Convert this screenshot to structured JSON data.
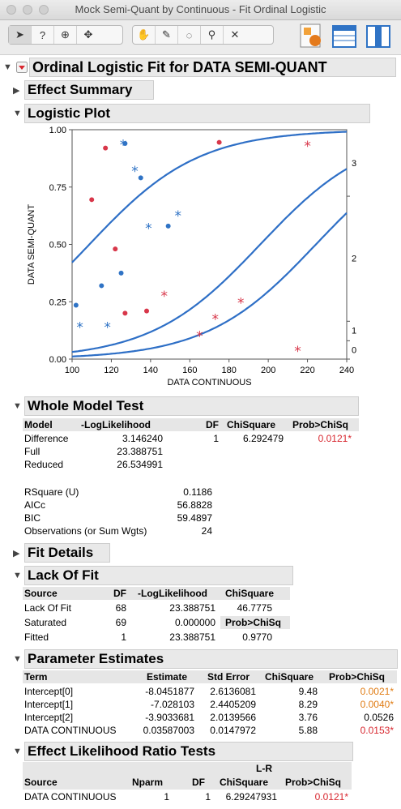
{
  "window": {
    "title": "Mock Semi-Quant by Continuous - Fit Ordinal Logistic"
  },
  "toolbar": {
    "icons": [
      "arrow-tool",
      "help-tool",
      "crosshair-tool",
      "move-tool",
      "grabber-tool",
      "brush-tool",
      "lasso-tool",
      "magnifier-tool",
      "annotate-tool",
      "jmp-home",
      "data-table",
      "report-window"
    ]
  },
  "report": {
    "title": "Ordinal Logistic Fit for DATA SEMI-QUANT",
    "effect_summary": "Effect Summary",
    "logistic_plot": "Logistic Plot",
    "whole_model": {
      "title": "Whole Model Test",
      "headers": [
        "Model",
        "-LogLikelihood",
        "DF",
        "ChiSquare",
        "Prob>ChiSq"
      ],
      "difference": {
        "label": "Difference",
        "loglik": "3.146240",
        "df": "1",
        "chisq": "6.292479",
        "p": "0.0121*"
      },
      "full": {
        "label": "Full",
        "loglik": "23.388751"
      },
      "reduced": {
        "label": "Reduced",
        "loglik": "26.534991"
      },
      "stats": [
        {
          "label": "RSquare (U)",
          "value": "0.1186"
        },
        {
          "label": "AICc",
          "value": "56.8828"
        },
        {
          "label": "BIC",
          "value": "59.4897"
        },
        {
          "label": "Observations (or Sum Wgts)",
          "value": "24"
        }
      ]
    },
    "fit_details": "Fit Details",
    "lack_of_fit": {
      "title": "Lack Of Fit",
      "headers": [
        "Source",
        "DF",
        "-LogLikelihood",
        "ChiSquare"
      ],
      "rows": [
        {
          "source": "Lack Of Fit",
          "df": "68",
          "loglik": "23.388751",
          "chisq": "46.7775"
        },
        {
          "source": "Saturated",
          "df": "69",
          "loglik": "0.000000",
          "chisq": "Prob>ChiSq"
        },
        {
          "source": "Fitted",
          "df": "1",
          "loglik": "23.388751",
          "chisq": "0.9770"
        }
      ]
    },
    "param_est": {
      "title": "Parameter Estimates",
      "headers": [
        "Term",
        "Estimate",
        "Std Error",
        "ChiSquare",
        "Prob>ChiSq"
      ],
      "rows": [
        {
          "term": "Intercept[0]",
          "est": "-8.0451877",
          "se": "2.6136081",
          "chisq": "9.48",
          "p": "0.0021*"
        },
        {
          "term": "Intercept[1]",
          "est": "-7.028103",
          "se": "2.4405209",
          "chisq": "8.29",
          "p": "0.0040*"
        },
        {
          "term": "Intercept[2]",
          "est": "-3.9033681",
          "se": "2.0139566",
          "chisq": "3.76",
          "p": "0.0526"
        },
        {
          "term": "DATA CONTINUOUS",
          "est": "0.03587003",
          "se": "0.0147972",
          "chisq": "5.88",
          "p": "0.0153*"
        }
      ]
    },
    "elr": {
      "title": "Effect Likelihood Ratio Tests",
      "headers": [
        "Source",
        "Nparm",
        "DF",
        "L-R",
        "ChiSquare",
        "Prob>ChiSq"
      ],
      "row": {
        "source": "DATA CONTINUOUS",
        "nparm": "1",
        "df": "1",
        "chisq": "6.29247931",
        "p": "0.0121*"
      }
    }
  },
  "colors": {
    "blue": "#2f73c5",
    "red": "#d8374a",
    "curve": "#2e6fc6",
    "pvalue_red": "#d8272f",
    "pvalue_orange": "#e07c14"
  },
  "chart_data": {
    "type": "scatter",
    "xlabel": "DATA CONTINUOUS",
    "ylabel": "DATA SEMI-QUANT",
    "xlim": [
      100,
      240
    ],
    "ylim": [
      0,
      1
    ],
    "x_ticks": [
      "100",
      "120",
      "140",
      "160",
      "180",
      "200",
      "220",
      "240"
    ],
    "y_ticks": [
      "0.00",
      "0.25",
      "0.50",
      "0.75",
      "1.00"
    ],
    "right_labels": [
      {
        "text": "0",
        "y": 0.04
      },
      {
        "text": "1",
        "y": 0.125
      },
      {
        "text": "2",
        "y": 0.44
      },
      {
        "text": "3",
        "y": 0.855
      }
    ],
    "intercepts": [
      -8.0451877,
      -7.028103,
      -3.9033681
    ],
    "slope": 0.03587003,
    "points": [
      {
        "x": 102,
        "y": 0.235,
        "color": "blue",
        "marker": "dot"
      },
      {
        "x": 104,
        "y": 0.14,
        "color": "blue",
        "marker": "star"
      },
      {
        "x": 110,
        "y": 0.695,
        "color": "red",
        "marker": "dot"
      },
      {
        "x": 115,
        "y": 0.32,
        "color": "blue",
        "marker": "dot"
      },
      {
        "x": 117,
        "y": 0.92,
        "color": "red",
        "marker": "dot"
      },
      {
        "x": 118,
        "y": 0.14,
        "color": "blue",
        "marker": "star"
      },
      {
        "x": 122,
        "y": 0.48,
        "color": "red",
        "marker": "dot"
      },
      {
        "x": 125,
        "y": 0.375,
        "color": "blue",
        "marker": "dot"
      },
      {
        "x": 126,
        "y": 0.935,
        "color": "blue",
        "marker": "star"
      },
      {
        "x": 127,
        "y": 0.2,
        "color": "red",
        "marker": "dot"
      },
      {
        "x": 127,
        "y": 0.94,
        "color": "blue",
        "marker": "dot"
      },
      {
        "x": 132,
        "y": 0.82,
        "color": "blue",
        "marker": "star"
      },
      {
        "x": 135,
        "y": 0.79,
        "color": "blue",
        "marker": "dot"
      },
      {
        "x": 138,
        "y": 0.21,
        "color": "red",
        "marker": "dot"
      },
      {
        "x": 139,
        "y": 0.57,
        "color": "blue",
        "marker": "star"
      },
      {
        "x": 147,
        "y": 0.275,
        "color": "red",
        "marker": "star"
      },
      {
        "x": 149,
        "y": 0.58,
        "color": "blue",
        "marker": "dot"
      },
      {
        "x": 154,
        "y": 0.625,
        "color": "blue",
        "marker": "star"
      },
      {
        "x": 165,
        "y": 0.1,
        "color": "red",
        "marker": "star"
      },
      {
        "x": 173,
        "y": 0.175,
        "color": "red",
        "marker": "star"
      },
      {
        "x": 175,
        "y": 0.945,
        "color": "red",
        "marker": "dot"
      },
      {
        "x": 186,
        "y": 0.245,
        "color": "red",
        "marker": "star"
      },
      {
        "x": 215,
        "y": 0.035,
        "color": "red",
        "marker": "star"
      },
      {
        "x": 220,
        "y": 0.93,
        "color": "red",
        "marker": "star"
      }
    ]
  }
}
